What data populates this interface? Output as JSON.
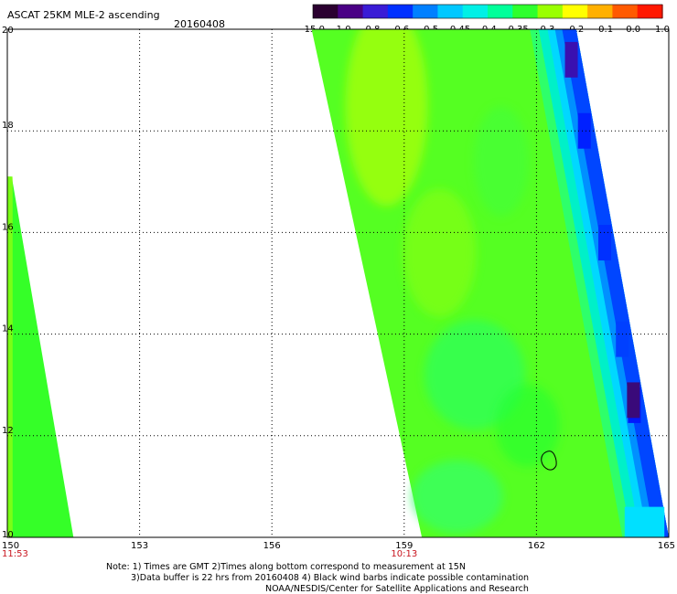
{
  "header": {
    "title": "ASCAT 25KM MLE-2 ascending",
    "date": "20160408"
  },
  "colorbar": {
    "ticks": [
      "-15.0",
      "-1.0",
      "-0.8",
      "-0.6",
      "-0.5",
      "-0.45",
      "-0.4",
      "-0.35",
      "-0.3",
      "-0.2",
      "-0.1",
      "0.0",
      "1.0"
    ],
    "colors": [
      "#2b0030",
      "#4a0085",
      "#3a1cd6",
      "#0030ff",
      "#0080ff",
      "#00c8ff",
      "#00f0e6",
      "#00ff9a",
      "#2eff2e",
      "#9aff00",
      "#ffff00",
      "#ffb000",
      "#ff5a00",
      "#ff1800"
    ]
  },
  "chart_data": {
    "type": "heatmap",
    "title": "ASCAT 25KM MLE-2 ascending",
    "date": "20160408",
    "xlim": [
      150,
      165
    ],
    "ylim": [
      10,
      20
    ],
    "x_ticks": [
      "150",
      "153",
      "156",
      "159",
      "162",
      "165"
    ],
    "y_ticks": [
      "20",
      "18",
      "16",
      "14",
      "12",
      "10"
    ],
    "time_labels": [
      {
        "x": 150,
        "text": "11:53"
      },
      {
        "x": 159,
        "text": "10:13"
      }
    ],
    "grid": true,
    "colorbar_values": [
      -15.0,
      -1.0,
      -0.8,
      -0.6,
      -0.5,
      -0.45,
      -0.4,
      -0.35,
      -0.3,
      -0.2,
      -0.1,
      0.0,
      1.0
    ],
    "swaths": [
      {
        "edges": [
          [
            150.0,
            17.1
          ],
          [
            150.1,
            17.1
          ],
          [
            151.5,
            10.0
          ],
          [
            150.0,
            10.0
          ]
        ],
        "value_range": [
          -0.38,
          -0.33
        ]
      },
      {
        "edges": [
          [
            156.9,
            20.0
          ],
          [
            162.8,
            20.0
          ],
          [
            164.9,
            10.0
          ],
          [
            159.4,
            10.0
          ]
        ],
        "value_range": [
          -0.8,
          -0.3
        ]
      }
    ],
    "contour": {
      "lon": 162.3,
      "lat": 11.5
    }
  },
  "notes": {
    "line1": "Note: 1) Times are GMT 2)Times along bottom correspond to measurement at 15N",
    "line2": "3)Data buffer is 22 hrs from 20160408 4) Black wind barbs indicate possible contamination",
    "line3": "NOAA/NESDIS/Center for Satellite Applications and Research"
  }
}
